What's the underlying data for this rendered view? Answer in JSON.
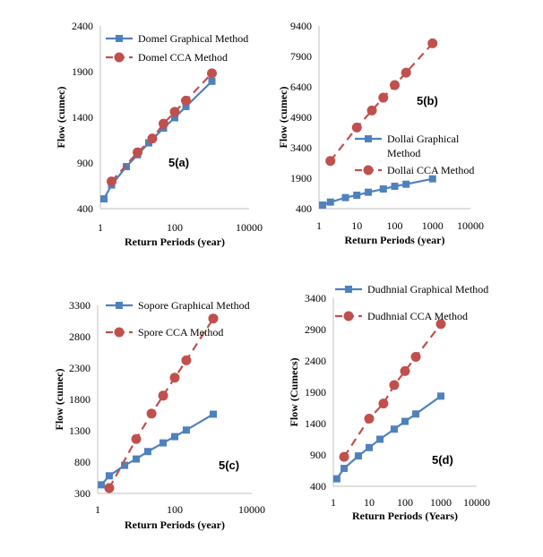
{
  "colors": {
    "graphical": "#4f81bd",
    "cca": "#c0504d",
    "axis": "#bfbfbf"
  },
  "chart_data": [
    {
      "type": "line",
      "panel_label": "5(a)",
      "xlabel": "Return Periods (year)",
      "ylabel": "Flow (cumec)",
      "xscale": "log",
      "xlim": [
        1,
        10000
      ],
      "xticks": [
        "1",
        "100",
        "10000"
      ],
      "ylim": [
        400,
        2400
      ],
      "yticks": [
        "400",
        "900",
        "1400",
        "1900",
        "2400"
      ],
      "grid": false,
      "legend_placement": "top-left",
      "series": [
        {
          "name": "Domel Graphical Method",
          "style": "solid-square",
          "x": [
            1.25,
            2,
            5,
            10,
            20,
            50,
            100,
            200,
            1000
          ],
          "y": [
            507,
            659,
            860,
            990,
            1120,
            1282,
            1395,
            1518,
            1794
          ]
        },
        {
          "name": "Domel CCA Method",
          "style": "dashed-circle",
          "x": [
            2,
            10,
            25,
            50,
            100,
            200,
            1000
          ],
          "y": [
            698,
            1016,
            1168,
            1330,
            1460,
            1583,
            1882
          ]
        }
      ]
    },
    {
      "type": "line",
      "panel_label": "5(b)",
      "xlabel": "Return Periods (year)",
      "ylabel": "Flow (cumec)",
      "xscale": "log",
      "xlim": [
        1,
        10000
      ],
      "xticks": [
        "1",
        "10",
        "100",
        "1000",
        "10000"
      ],
      "ylim": [
        400,
        9400
      ],
      "yticks": [
        "400",
        "1900",
        "3400",
        "4900",
        "6400",
        "7900",
        "9400"
      ],
      "grid": false,
      "legend_placement": "center-right",
      "series": [
        {
          "name": "Dollai Graphical Method",
          "style": "solid-square",
          "x": [
            1.25,
            2,
            5,
            10,
            20,
            50,
            100,
            200,
            1000
          ],
          "y": [
            576,
            723,
            944,
            1062,
            1209,
            1370,
            1502,
            1605,
            1870
          ]
        },
        {
          "name": "Dollai CCA Method",
          "style": "dashed-circle",
          "x": [
            2,
            10,
            25,
            50,
            100,
            200,
            1000
          ],
          "y": [
            2752,
            4398,
            5236,
            5868,
            6486,
            7103,
            8544
          ]
        }
      ]
    },
    {
      "type": "line",
      "panel_label": "5(c)",
      "xlabel": "Return Periods (year)",
      "ylabel": "Flow (cumec)",
      "xscale": "log",
      "xlim": [
        1,
        10000
      ],
      "xticks": [
        "1",
        "100",
        "10000"
      ],
      "ylim": [
        300,
        3300
      ],
      "yticks": [
        "300",
        "800",
        "1300",
        "1800",
        "2300",
        "2800",
        "3300"
      ],
      "grid": false,
      "legend_placement": "top-left",
      "series": [
        {
          "name": "Sopore Graphical Method",
          "style": "solid-square",
          "x": [
            1.25,
            2,
            5,
            10,
            20,
            50,
            100,
            200,
            1000
          ],
          "y": [
            438,
            581,
            748,
            849,
            968,
            1106,
            1206,
            1311,
            1564
          ]
        },
        {
          "name": "Spore CCA Method",
          "style": "dashed-circle",
          "x": [
            2,
            10,
            25,
            50,
            100,
            200,
            1000
          ],
          "y": [
            386,
            1168,
            1574,
            1860,
            2146,
            2423,
            3090
          ]
        }
      ]
    },
    {
      "type": "line",
      "panel_label": "5(d)",
      "xlabel": "Return Periods (Years)",
      "ylabel": "Flow (Cumecs)",
      "xscale": "log",
      "xlim": [
        1,
        10000
      ],
      "xticks": [
        "1",
        "10",
        "100",
        "1000",
        "10000"
      ],
      "ylim": [
        400,
        3400
      ],
      "yticks": [
        "400",
        "900",
        "1400",
        "1900",
        "2400",
        "2900",
        "3400"
      ],
      "grid": false,
      "legend_placement": "top",
      "series": [
        {
          "name": "Dudhnial Graphical Method",
          "style": "solid-square",
          "x": [
            1.25,
            2,
            5,
            10,
            20,
            50,
            100,
            200,
            1000
          ],
          "y": [
            519,
            685,
            884,
            1017,
            1150,
            1311,
            1435,
            1553,
            1838
          ]
        },
        {
          "name": "Dudhnial CCA Method",
          "style": "dashed-circle",
          "x": [
            2,
            10,
            25,
            50,
            100,
            200,
            1000
          ],
          "y": [
            870,
            1478,
            1720,
            2014,
            2237,
            2465,
            2987
          ]
        }
      ]
    }
  ]
}
